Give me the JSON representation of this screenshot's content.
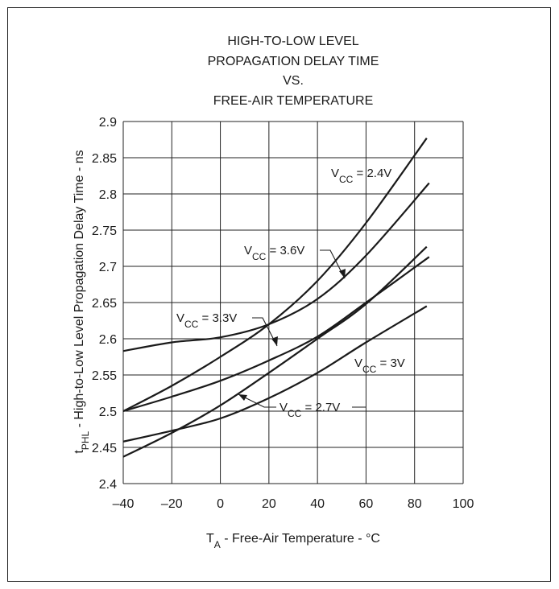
{
  "chart_data": {
    "type": "line",
    "title_lines": [
      "HIGH-TO-LOW LEVEL",
      "PROPAGATION DELAY TIME",
      "VS.",
      "FREE-AIR TEMPERATURE"
    ],
    "xlabel": {
      "main": "T",
      "sub": "A",
      "rest": " - Free-Air Temperature - °C"
    },
    "ylabel": {
      "main": "t",
      "sub": "PHL",
      "rest": " - High-to-Low Level Propagation Delay Time - ns"
    },
    "xlim": [
      -40,
      100
    ],
    "ylim": [
      2.4,
      2.9
    ],
    "x_ticks": [
      -40,
      -20,
      0,
      20,
      40,
      60,
      80,
      100
    ],
    "x_tick_labels": [
      "–40",
      "–20",
      "0",
      "20",
      "40",
      "60",
      "80",
      "100"
    ],
    "y_ticks": [
      2.4,
      2.45,
      2.5,
      2.55,
      2.6,
      2.65,
      2.7,
      2.75,
      2.8,
      2.85,
      2.9
    ],
    "y_tick_labels": [
      "2.4",
      "2.45",
      "2.5",
      "2.55",
      "2.6",
      "2.65",
      "2.7",
      "2.75",
      "2.8",
      "2.85",
      "2.9"
    ],
    "grid": true,
    "series": [
      {
        "name_main": "V",
        "name_sub": "CC",
        "name_rest": " = 2.4V",
        "x": [
          -40,
          -20,
          0,
          20,
          40,
          60,
          85
        ],
        "y": [
          2.5,
          2.535,
          2.575,
          2.62,
          2.68,
          2.76,
          2.877
        ]
      },
      {
        "name_main": "V",
        "name_sub": "CC",
        "name_rest": " = 3.6V",
        "x": [
          -40,
          -20,
          0,
          20,
          40,
          60,
          86
        ],
        "y": [
          2.583,
          2.595,
          2.602,
          2.62,
          2.655,
          2.715,
          2.815
        ]
      },
      {
        "name_main": "V",
        "name_sub": "CC",
        "name_rest": " = 3.3V",
        "x": [
          -40,
          -20,
          0,
          20,
          40,
          60,
          86
        ],
        "y": [
          2.5,
          2.52,
          2.542,
          2.57,
          2.603,
          2.65,
          2.713
        ]
      },
      {
        "name_main": "V",
        "name_sub": "CC",
        "name_rest": " = 2.7V",
        "x": [
          -40,
          -20,
          0,
          20,
          40,
          60,
          85
        ],
        "y": [
          2.437,
          2.47,
          2.508,
          2.553,
          2.6,
          2.648,
          2.727
        ]
      },
      {
        "name_main": "V",
        "name_sub": "CC",
        "name_rest": " = 3V",
        "x": [
          -40,
          -20,
          0,
          20,
          40,
          60,
          85
        ],
        "y": [
          2.458,
          2.473,
          2.49,
          2.518,
          2.553,
          2.595,
          2.645
        ]
      }
    ]
  }
}
